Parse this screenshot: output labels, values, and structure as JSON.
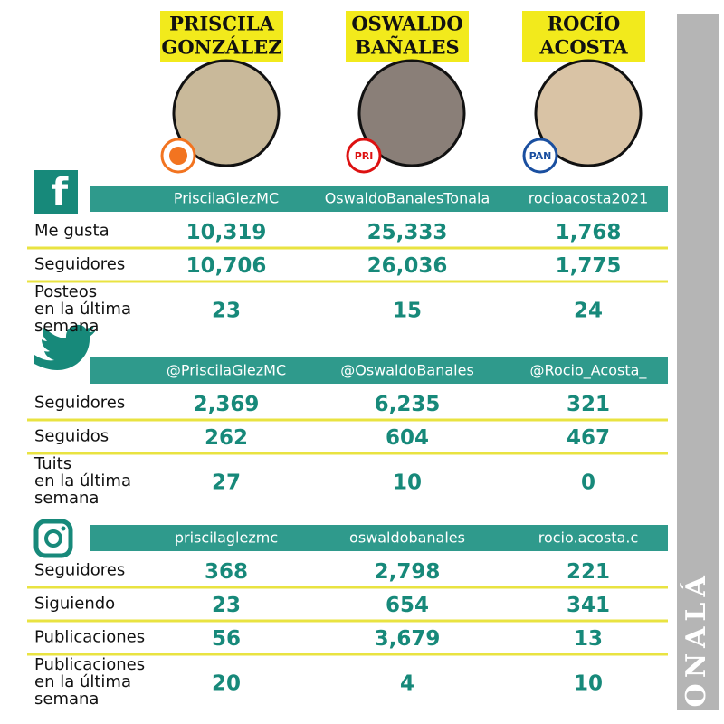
{
  "candidates": [
    {
      "name": [
        "PRISCILA",
        "GONZÁLEZ"
      ]
    },
    {
      "name": [
        "OSWALDO",
        "BAÑALES"
      ],
      "party": "PRI"
    },
    {
      "name": [
        "ROCÍO",
        "ACOSTA"
      ],
      "party": "PAN"
    }
  ],
  "sections": [
    {
      "network": "facebook",
      "handles": [
        "PriscilaGlezMC",
        "OswaldoBanalesTonala",
        "rocioacosta2021"
      ],
      "rows": [
        {
          "label": [
            "Me gusta"
          ],
          "values": [
            "10,319",
            "25,333",
            "1,768"
          ]
        },
        {
          "label": [
            "Seguidores"
          ],
          "values": [
            "10,706",
            "26,036",
            "1,775"
          ]
        },
        {
          "label": [
            "Posteos",
            "en la última",
            "semana"
          ],
          "values": [
            "23",
            "15",
            "24"
          ]
        }
      ]
    },
    {
      "network": "twitter",
      "handles": [
        "@PriscilaGlezMC",
        "@OswaldoBanales",
        "@Rocio_Acosta_"
      ],
      "rows": [
        {
          "label": [
            "Seguidores"
          ],
          "values": [
            "2,369",
            "6,235",
            "321"
          ]
        },
        {
          "label": [
            "Seguidos"
          ],
          "values": [
            "262",
            "604",
            "467"
          ]
        },
        {
          "label": [
            "Tuits",
            "en la última",
            "semana"
          ],
          "values": [
            "27",
            "10",
            "0"
          ]
        }
      ]
    },
    {
      "network": "instagram",
      "handles": [
        "priscilaglezmc",
        "oswaldobanales",
        "rocio.acosta.c"
      ],
      "rows": [
        {
          "label": [
            "Seguidores"
          ],
          "values": [
            "368",
            "2,798",
            "221"
          ]
        },
        {
          "label": [
            "Siguiendo"
          ],
          "values": [
            "23",
            "654",
            "341"
          ]
        },
        {
          "label": [
            "Publicaciones"
          ],
          "values": [
            "56",
            "3,679",
            "13"
          ]
        },
        {
          "label": [
            "Publicaciones",
            "en la última",
            "semana"
          ],
          "values": [
            "20",
            "4",
            "10"
          ]
        }
      ]
    }
  ],
  "side_label": "TONALÁ"
}
